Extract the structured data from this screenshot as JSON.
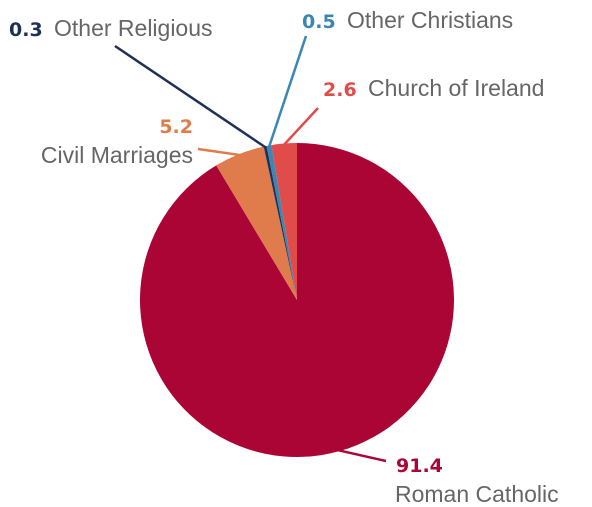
{
  "chart_data": {
    "type": "pie",
    "title": "",
    "slices": [
      {
        "label": "Roman Catholic",
        "value": 91.4,
        "value_label": "91.4",
        "color": "#AA0535"
      },
      {
        "label": "Civil Marriages",
        "value": 5.2,
        "value_label": "5.2",
        "color": "#E07B4C"
      },
      {
        "label": "Other Religious",
        "value": 0.3,
        "value_label": "0.3",
        "color": "#1F3057"
      },
      {
        "label": "Other Christians",
        "value": 0.5,
        "value_label": "0.5",
        "color": "#3C86B4"
      },
      {
        "label": "Church of Ireland",
        "value": 2.6,
        "value_label": "2.6",
        "color": "#E04C4A"
      }
    ]
  }
}
